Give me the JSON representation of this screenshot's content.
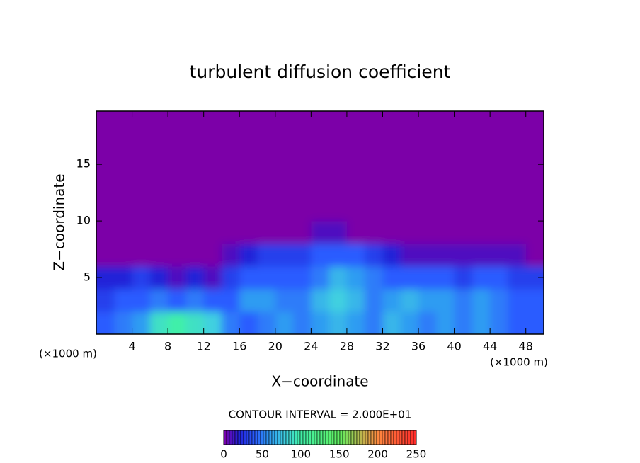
{
  "chart_data": {
    "type": "heatmap",
    "title": "turbulent diffusion coefficient",
    "x_label": "X−coordinate",
    "y_label": "Z−coordinate",
    "x_unit_label": "(×1000 m)",
    "y_unit_label": "(×1000 m)",
    "contour_label": "CONTOUR INTERVAL = 2.000E+01",
    "xlim": [
      0,
      50
    ],
    "xticks": [
      4,
      8,
      12,
      16,
      20,
      24,
      28,
      32,
      36,
      40,
      44,
      48
    ],
    "ylim": [
      0,
      19.7
    ],
    "yticks": [
      5,
      10,
      15
    ],
    "x": [
      1,
      3,
      5,
      7,
      9,
      11,
      13,
      15,
      17,
      19,
      21,
      23,
      25,
      27,
      29,
      31,
      33,
      35,
      37,
      39,
      41,
      43,
      45,
      47,
      49
    ],
    "y": [
      1,
      3,
      5,
      7,
      9,
      11,
      13,
      15,
      17,
      19
    ],
    "z": [
      [
        40,
        50,
        60,
        90,
        100,
        90,
        80,
        50,
        40,
        50,
        60,
        50,
        60,
        70,
        60,
        50,
        70,
        60,
        50,
        60,
        50,
        60,
        50,
        40,
        40
      ],
      [
        30,
        40,
        40,
        50,
        40,
        50,
        40,
        40,
        60,
        60,
        50,
        50,
        70,
        80,
        70,
        50,
        60,
        70,
        60,
        60,
        50,
        60,
        50,
        40,
        40
      ],
      [
        20,
        20,
        30,
        20,
        10,
        20,
        10,
        30,
        40,
        40,
        40,
        40,
        50,
        70,
        60,
        50,
        40,
        40,
        40,
        40,
        30,
        40,
        40,
        30,
        30
      ],
      [
        0,
        0,
        0,
        0,
        0,
        0,
        0,
        10,
        20,
        30,
        30,
        30,
        40,
        40,
        40,
        30,
        20,
        10,
        10,
        10,
        10,
        10,
        10,
        10,
        0
      ],
      [
        0,
        0,
        0,
        0,
        0,
        0,
        0,
        0,
        0,
        0,
        0,
        0,
        10,
        10,
        0,
        0,
        0,
        0,
        0,
        0,
        0,
        0,
        0,
        0,
        0
      ],
      [
        0,
        0,
        0,
        0,
        0,
        0,
        0,
        0,
        0,
        0,
        0,
        0,
        0,
        0,
        0,
        0,
        0,
        0,
        0,
        0,
        0,
        0,
        0,
        0,
        0
      ],
      [
        0,
        0,
        0,
        0,
        0,
        0,
        0,
        0,
        0,
        0,
        0,
        0,
        0,
        0,
        0,
        0,
        0,
        0,
        0,
        0,
        0,
        0,
        0,
        0,
        0
      ],
      [
        0,
        0,
        0,
        0,
        0,
        0,
        0,
        0,
        0,
        0,
        0,
        0,
        0,
        0,
        0,
        0,
        0,
        0,
        0,
        0,
        0,
        0,
        0,
        0,
        0
      ],
      [
        0,
        0,
        0,
        0,
        0,
        0,
        0,
        0,
        0,
        0,
        0,
        0,
        0,
        0,
        0,
        0,
        0,
        0,
        0,
        0,
        0,
        0,
        0,
        0,
        0
      ],
      [
        0,
        0,
        0,
        0,
        0,
        0,
        0,
        0,
        0,
        0,
        0,
        0,
        0,
        0,
        0,
        0,
        0,
        0,
        0,
        0,
        0,
        0,
        0,
        0,
        0
      ]
    ],
    "zlim": [
      0,
      250
    ],
    "zticks": [
      0,
      50,
      100,
      150,
      200,
      250
    ],
    "colorscale": [
      [
        0,
        "#7c00a8"
      ],
      [
        20,
        "#2222d8"
      ],
      [
        40,
        "#2a5cff"
      ],
      [
        60,
        "#2f9cf2"
      ],
      [
        80,
        "#3fd0e0"
      ],
      [
        100,
        "#40f0a8"
      ],
      [
        150,
        "#60f060"
      ],
      [
        200,
        "#ff8a40"
      ],
      [
        250,
        "#ff2a2a"
      ]
    ]
  }
}
